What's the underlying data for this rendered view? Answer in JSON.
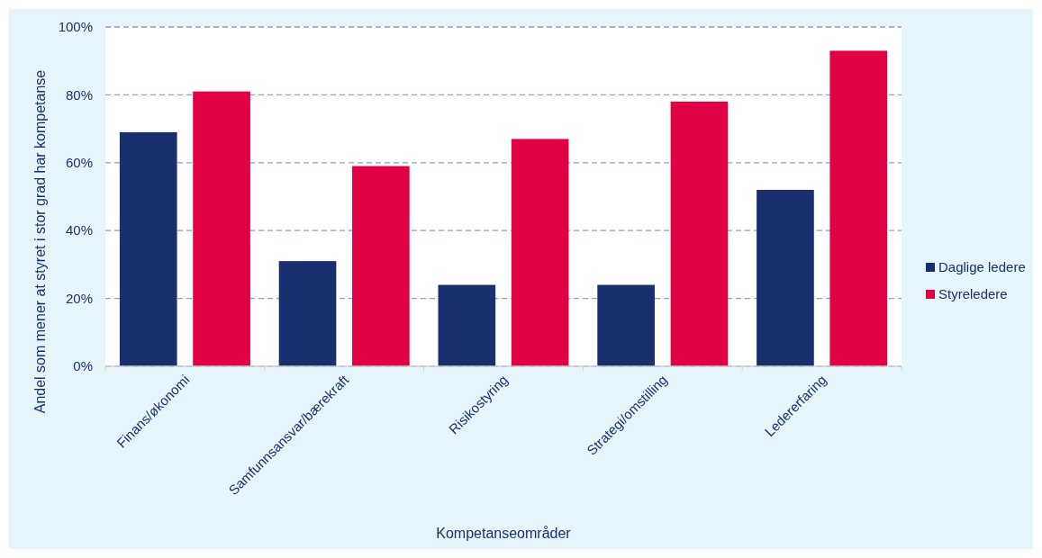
{
  "chart_data": {
    "type": "bar",
    "xlabel": "Kompetanseområder",
    "ylabel": "Andel som mener at styret i stor grad har kompetanse",
    "categories": [
      "Finans/økonomi",
      "Samfunnsansvar/bærekraft",
      "Risikostyring",
      "Strategi/omstilling",
      "Ledererfaring"
    ],
    "series": [
      {
        "name": "Daglige ledere",
        "color": "#1a2f6e",
        "values": [
          69,
          31,
          24,
          24,
          52
        ]
      },
      {
        "name": "Styreledere",
        "color": "#e00043",
        "values": [
          81,
          59,
          67,
          78,
          93
        ]
      }
    ],
    "ylim": [
      0,
      100
    ],
    "yticks": [
      {
        "value": 0,
        "label": "0%"
      },
      {
        "value": 20,
        "label": "20%"
      },
      {
        "value": 40,
        "label": "40%"
      },
      {
        "value": 60,
        "label": "60%"
      },
      {
        "value": 80,
        "label": "80%"
      },
      {
        "value": 100,
        "label": "100%"
      }
    ],
    "grid": "y",
    "legend": "right"
  }
}
